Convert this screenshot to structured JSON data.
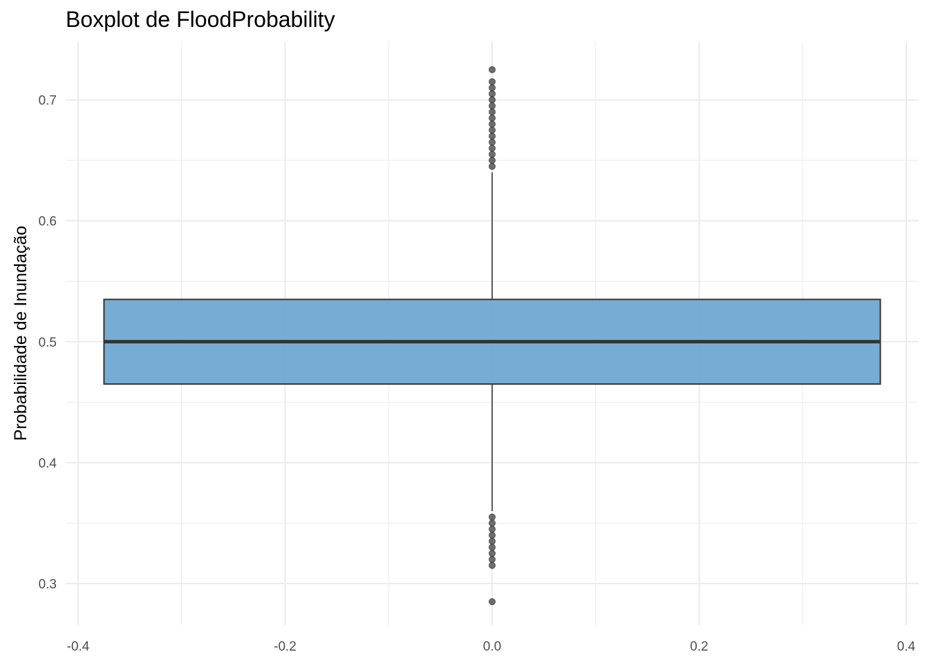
{
  "chart_data": {
    "type": "boxplot",
    "title": "Boxplot de FloodProbability",
    "xlabel": "",
    "ylabel": "Probabilidade de Inundação",
    "xlim": [
      -0.4,
      0.4
    ],
    "ylim": [
      0.285,
      0.725
    ],
    "x_ticks": [
      -0.4,
      -0.2,
      0.0,
      0.2,
      0.4
    ],
    "x_tick_labels": [
      "-0.4",
      "-0.2",
      "0.0",
      "0.2",
      "0.4"
    ],
    "y_ticks": [
      0.3,
      0.4,
      0.5,
      0.6,
      0.7
    ],
    "y_tick_labels": [
      "0.3",
      "0.4",
      "0.5",
      "0.6",
      "0.7"
    ],
    "grid": true,
    "box": {
      "x": 0.0,
      "width": 0.75,
      "q1": 0.465,
      "median": 0.5,
      "q3": 0.535,
      "whisker_low": 0.36,
      "whisker_high": 0.64,
      "fill": "#6BA6D0",
      "edge": "#333333"
    },
    "outliers": [
      0.285,
      0.315,
      0.32,
      0.325,
      0.33,
      0.335,
      0.34,
      0.345,
      0.35,
      0.355,
      0.645,
      0.65,
      0.655,
      0.66,
      0.665,
      0.67,
      0.675,
      0.68,
      0.685,
      0.69,
      0.695,
      0.7,
      0.705,
      0.71,
      0.715,
      0.725
    ],
    "colors": {
      "gridline": "#EBEBEB",
      "outlier": "#333333"
    }
  }
}
